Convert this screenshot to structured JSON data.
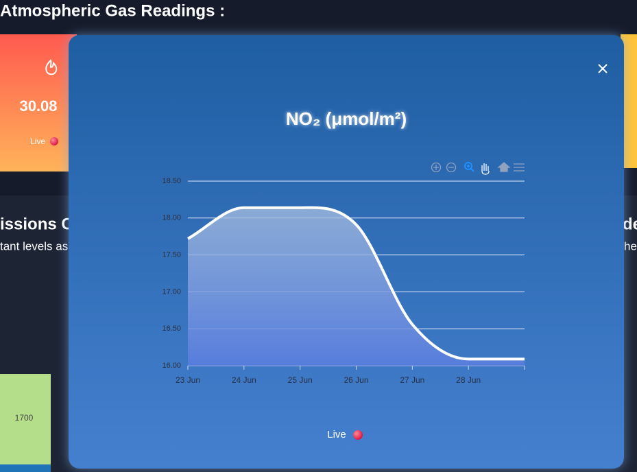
{
  "page": {
    "heading": "Atmospheric Gas Readings :",
    "card_value": "30.08",
    "card_live": "Live",
    "left_title": "issions C",
    "left_sub": "tant levels as",
    "right_title": "de",
    "right_sub": "her",
    "bar_label": "1700"
  },
  "modal": {
    "live": "Live"
  },
  "chart_data": {
    "type": "line",
    "title": "NO₂ (μmol/m²)",
    "categories": [
      "23 Jun",
      "24 Jun",
      "25 Jun",
      "26 Jun",
      "27 Jun",
      "28 Jun",
      null
    ],
    "values": [
      17.72,
      18.14,
      18.14,
      17.91,
      16.56,
      16.09,
      16.09
    ],
    "color": "#ffffff",
    "ylim": [
      16,
      18.5
    ],
    "yticks": [
      {
        "value": 16,
        "label": "16.00"
      },
      {
        "value": 16.5,
        "label": "16.50"
      },
      {
        "value": 17,
        "label": "17.00"
      },
      {
        "value": 17.5,
        "label": "17.50"
      },
      {
        "value": 18,
        "label": "18.00"
      },
      {
        "value": 18.5,
        "label": "18.50"
      }
    ],
    "grid": true
  }
}
